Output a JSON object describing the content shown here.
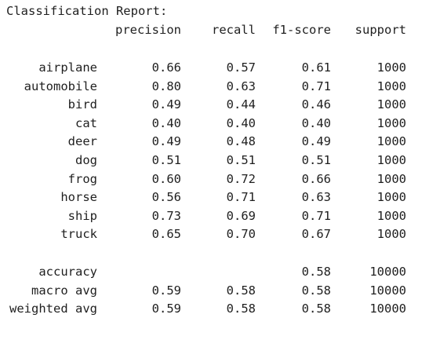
{
  "report": {
    "title": "Classification Report:",
    "headers": {
      "precision": "precision",
      "recall": "recall",
      "f1": "f1-score",
      "support": "support"
    },
    "classes": [
      {
        "label": "airplane",
        "precision": "0.66",
        "recall": "0.57",
        "f1": "0.61",
        "support": "1000"
      },
      {
        "label": "automobile",
        "precision": "0.80",
        "recall": "0.63",
        "f1": "0.71",
        "support": "1000"
      },
      {
        "label": "bird",
        "precision": "0.49",
        "recall": "0.44",
        "f1": "0.46",
        "support": "1000"
      },
      {
        "label": "cat",
        "precision": "0.40",
        "recall": "0.40",
        "f1": "0.40",
        "support": "1000"
      },
      {
        "label": "deer",
        "precision": "0.49",
        "recall": "0.48",
        "f1": "0.49",
        "support": "1000"
      },
      {
        "label": "dog",
        "precision": "0.51",
        "recall": "0.51",
        "f1": "0.51",
        "support": "1000"
      },
      {
        "label": "frog",
        "precision": "0.60",
        "recall": "0.72",
        "f1": "0.66",
        "support": "1000"
      },
      {
        "label": "horse",
        "precision": "0.56",
        "recall": "0.71",
        "f1": "0.63",
        "support": "1000"
      },
      {
        "label": "ship",
        "precision": "0.73",
        "recall": "0.69",
        "f1": "0.71",
        "support": "1000"
      },
      {
        "label": "truck",
        "precision": "0.65",
        "recall": "0.70",
        "f1": "0.67",
        "support": "1000"
      }
    ],
    "summary": [
      {
        "label": "accuracy",
        "precision": "",
        "recall": "",
        "f1": "0.58",
        "support": "10000"
      },
      {
        "label": "macro avg",
        "precision": "0.59",
        "recall": "0.58",
        "f1": "0.58",
        "support": "10000"
      },
      {
        "label": "weighted avg",
        "precision": "0.59",
        "recall": "0.58",
        "f1": "0.58",
        "support": "10000"
      }
    ]
  }
}
